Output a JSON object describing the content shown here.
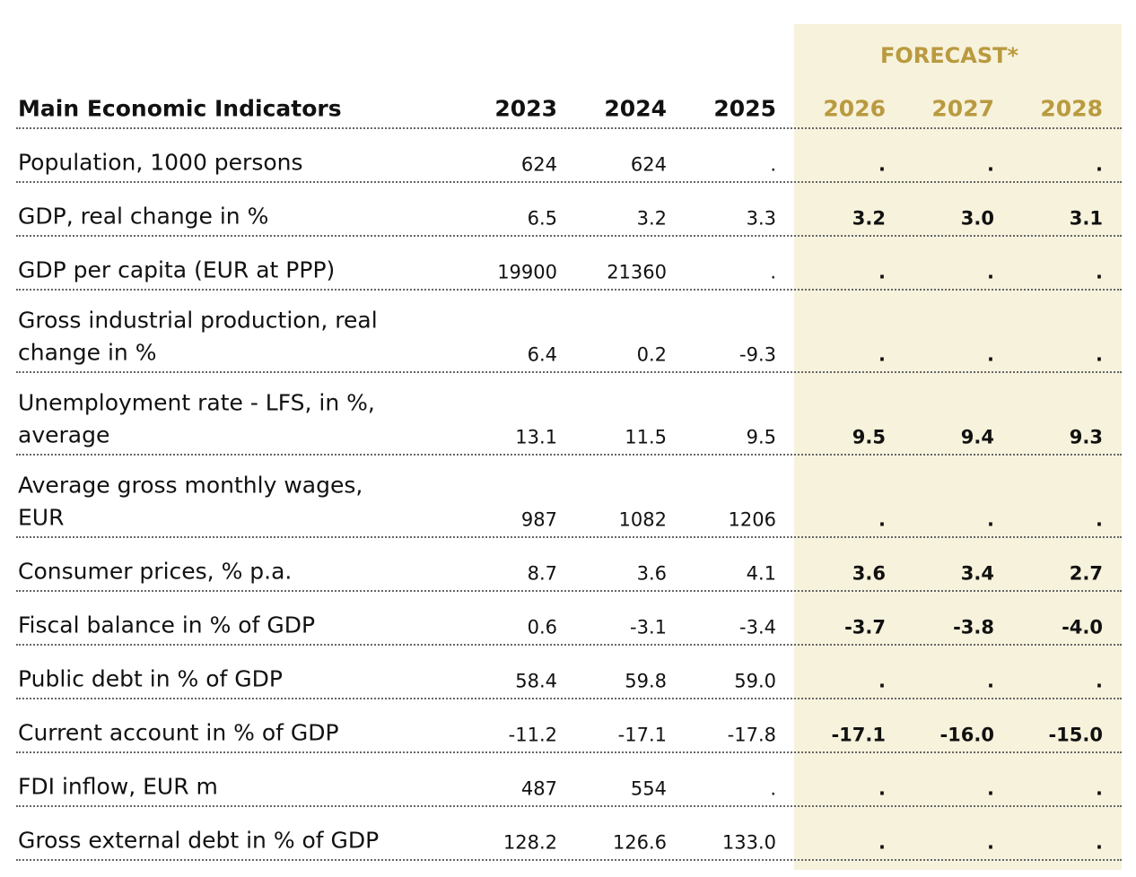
{
  "header": {
    "forecast_label": "FORECAST*",
    "title": "Main Economic Indicators",
    "years": [
      "2023",
      "2024",
      "2025",
      "2026",
      "2027",
      "2028"
    ]
  },
  "table": {
    "rows": [
      {
        "label_lines": [
          "Population, 1000 persons"
        ],
        "values": [
          "624",
          "624",
          ".",
          ".",
          ".",
          "."
        ]
      },
      {
        "label_lines": [
          "GDP, real change in %"
        ],
        "values": [
          "6.5",
          "3.2",
          "3.3",
          "3.2",
          "3.0",
          "3.1"
        ]
      },
      {
        "label_lines": [
          "GDP per capita (EUR at PPP)"
        ],
        "values": [
          "19900",
          "21360",
          ".",
          ".",
          ".",
          "."
        ]
      },
      {
        "label_lines": [
          "Gross industrial production, real",
          "change in %"
        ],
        "values": [
          "6.4",
          "0.2",
          "-9.3",
          ".",
          ".",
          "."
        ]
      },
      {
        "label_lines": [
          "Unemployment rate - LFS, in %,",
          "average"
        ],
        "values": [
          "13.1",
          "11.5",
          "9.5",
          "9.5",
          "9.4",
          "9.3"
        ]
      },
      {
        "label_lines": [
          "Average gross monthly wages,",
          "EUR"
        ],
        "values": [
          "987",
          "1082",
          "1206",
          ".",
          ".",
          "."
        ]
      },
      {
        "label_lines": [
          "Consumer prices, % p.a."
        ],
        "values": [
          "8.7",
          "3.6",
          "4.1",
          "3.6",
          "3.4",
          "2.7"
        ]
      },
      {
        "label_lines": [
          "Fiscal balance in % of GDP"
        ],
        "values": [
          "0.6",
          "-3.1",
          "-3.4",
          "-3.7",
          "-3.8",
          "-4.0"
        ]
      },
      {
        "label_lines": [
          "Public debt in % of GDP"
        ],
        "values": [
          "58.4",
          "59.8",
          "59.0",
          ".",
          ".",
          "."
        ]
      },
      {
        "label_lines": [
          "Current account in % of GDP"
        ],
        "values": [
          "-11.2",
          "-17.1",
          "-17.8",
          "-17.1",
          "-16.0",
          "-15.0"
        ]
      },
      {
        "label_lines": [
          "FDI inflow, EUR m"
        ],
        "values": [
          "487",
          "554",
          ".",
          ".",
          ".",
          "."
        ]
      },
      {
        "label_lines": [
          "Gross external debt in % of GDP"
        ],
        "values": [
          "128.2",
          "126.6",
          "133.0",
          ".",
          ".",
          "."
        ]
      }
    ]
  }
}
